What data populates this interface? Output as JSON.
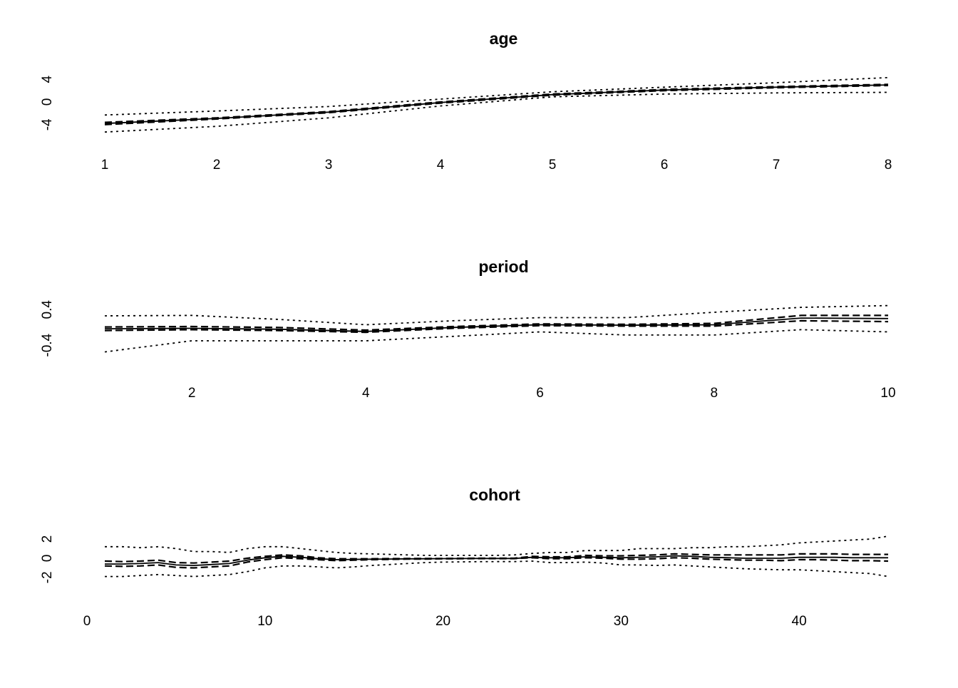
{
  "chart_data": [
    {
      "type": "line",
      "title": "age",
      "xlabel": "",
      "ylabel": "",
      "x": [
        1,
        2,
        3,
        4,
        5,
        6,
        7,
        8
      ],
      "xlim": [
        1,
        8
      ],
      "ylim": [
        -4.4,
        4.4
      ],
      "xticks": [
        1,
        2,
        3,
        4,
        5,
        6,
        7,
        8
      ],
      "yticks": [
        -4,
        0,
        4
      ],
      "grid": false,
      "legend": "none",
      "series": [
        {
          "line": "solid",
          "values": [
            -3.8,
            -2.9,
            -1.8,
            -0.1,
            1.3,
            2.1,
            2.6,
            3.0
          ]
        },
        {
          "line": "dashed",
          "values": [
            -3.6,
            -2.8,
            -1.7,
            0.0,
            1.4,
            2.2,
            2.7,
            3.1
          ]
        },
        {
          "line": "dashed",
          "values": [
            -4.0,
            -3.0,
            -1.9,
            -0.2,
            1.2,
            2.0,
            2.5,
            2.9
          ]
        },
        {
          "line": "dotted",
          "values": [
            -2.3,
            -1.6,
            -0.8,
            0.5,
            1.8,
            2.6,
            3.4,
            4.3
          ]
        },
        {
          "line": "dotted",
          "values": [
            -5.3,
            -4.3,
            -2.8,
            -0.7,
            0.9,
            1.4,
            1.6,
            1.7
          ]
        }
      ]
    },
    {
      "type": "line",
      "title": "period",
      "xlabel": "",
      "ylabel": "",
      "x": [
        1,
        2,
        3,
        4,
        5,
        6,
        7,
        8,
        9,
        10
      ],
      "xlim": [
        1,
        10
      ],
      "ylim": [
        -0.62,
        0.5
      ],
      "xticks": [
        2,
        4,
        6,
        8,
        10
      ],
      "yticks": [
        -0.4,
        0.4
      ],
      "grid": false,
      "legend": "none",
      "series": [
        {
          "line": "solid",
          "values": [
            -0.03,
            -0.02,
            -0.04,
            -0.09,
            0.0,
            0.06,
            0.05,
            0.06,
            0.21,
            0.2
          ]
        },
        {
          "line": "dashed",
          "values": [
            0.01,
            0.02,
            0.0,
            -0.06,
            0.02,
            0.08,
            0.07,
            0.09,
            0.27,
            0.27
          ]
        },
        {
          "line": "dashed",
          "values": [
            -0.07,
            -0.05,
            -0.07,
            -0.11,
            -0.02,
            0.04,
            0.03,
            0.03,
            0.15,
            0.13
          ]
        },
        {
          "line": "dotted",
          "values": [
            0.26,
            0.27,
            0.18,
            0.06,
            0.15,
            0.22,
            0.22,
            0.34,
            0.45,
            0.49
          ]
        },
        {
          "line": "dotted",
          "values": [
            -0.55,
            -0.3,
            -0.3,
            -0.3,
            -0.2,
            -0.1,
            -0.17,
            -0.17,
            -0.05,
            -0.1
          ]
        }
      ]
    },
    {
      "type": "line",
      "title": "cohort",
      "xlabel": "",
      "ylabel": "",
      "x": [
        1,
        2,
        3,
        4,
        5,
        6,
        7,
        8,
        9,
        10,
        11,
        12,
        13,
        14,
        15,
        16,
        17,
        18,
        19,
        20,
        21,
        22,
        23,
        24,
        25,
        26,
        27,
        28,
        29,
        30,
        31,
        32,
        33,
        34,
        35,
        36,
        37,
        38,
        39,
        40,
        41,
        42,
        43,
        44,
        45
      ],
      "xlim": [
        0,
        45
      ],
      "ylim": [
        -2.6,
        2.6
      ],
      "xticks": [
        0,
        10,
        20,
        30,
        40
      ],
      "yticks": [
        -2,
        0,
        2
      ],
      "grid": false,
      "legend": "none",
      "series": [
        {
          "line": "solid",
          "values": [
            -0.6,
            -0.6,
            -0.55,
            -0.45,
            -0.7,
            -0.75,
            -0.65,
            -0.55,
            -0.2,
            0.05,
            0.2,
            0.1,
            -0.05,
            -0.15,
            -0.12,
            -0.1,
            -0.08,
            -0.06,
            -0.05,
            -0.04,
            -0.03,
            -0.02,
            -0.02,
            -0.02,
            0.1,
            0.05,
            0.05,
            0.15,
            0.1,
            0.05,
            0.1,
            0.15,
            0.25,
            0.2,
            0.1,
            0.05,
            0.0,
            0.0,
            0.0,
            0.1,
            0.1,
            0.1,
            0.05,
            0.05,
            0.05
          ]
        },
        {
          "line": "dashed",
          "values": [
            -0.3,
            -0.35,
            -0.3,
            -0.2,
            -0.45,
            -0.5,
            -0.4,
            -0.3,
            0.0,
            0.2,
            0.35,
            0.25,
            0.05,
            -0.05,
            -0.05,
            -0.05,
            -0.04,
            -0.03,
            -0.02,
            -0.02,
            -0.01,
            0.0,
            0.0,
            0.0,
            0.2,
            0.15,
            0.15,
            0.3,
            0.25,
            0.25,
            0.3,
            0.35,
            0.45,
            0.4,
            0.35,
            0.35,
            0.35,
            0.35,
            0.35,
            0.45,
            0.45,
            0.45,
            0.4,
            0.4,
            0.4
          ]
        },
        {
          "line": "dashed",
          "values": [
            -0.8,
            -0.85,
            -0.8,
            -0.7,
            -0.95,
            -1.0,
            -0.9,
            -0.8,
            -0.4,
            -0.15,
            0.05,
            -0.05,
            -0.15,
            -0.25,
            -0.2,
            -0.15,
            -0.12,
            -0.09,
            -0.08,
            -0.06,
            -0.05,
            -0.04,
            -0.04,
            -0.04,
            0.05,
            -0.05,
            -0.05,
            0.05,
            0.0,
            -0.1,
            -0.1,
            -0.05,
            0.05,
            0.0,
            -0.1,
            -0.15,
            -0.2,
            -0.2,
            -0.25,
            -0.15,
            -0.15,
            -0.2,
            -0.25,
            -0.25,
            -0.3
          ]
        },
        {
          "line": "dotted",
          "values": [
            1.2,
            1.2,
            1.1,
            1.2,
            1.0,
            0.7,
            0.7,
            0.6,
            1.0,
            1.2,
            1.2,
            1.0,
            0.8,
            0.6,
            0.5,
            0.45,
            0.4,
            0.35,
            0.3,
            0.3,
            0.3,
            0.3,
            0.3,
            0.35,
            0.5,
            0.6,
            0.6,
            0.8,
            0.8,
            0.8,
            1.0,
            1.0,
            1.0,
            1.1,
            1.1,
            1.2,
            1.2,
            1.3,
            1.4,
            1.6,
            1.7,
            1.8,
            1.9,
            2.0,
            2.3
          ]
        },
        {
          "line": "dotted",
          "values": [
            -1.9,
            -1.9,
            -1.8,
            -1.7,
            -1.8,
            -1.9,
            -1.8,
            -1.7,
            -1.4,
            -1.0,
            -0.8,
            -0.8,
            -0.9,
            -1.0,
            -0.9,
            -0.75,
            -0.65,
            -0.55,
            -0.45,
            -0.4,
            -0.38,
            -0.36,
            -0.35,
            -0.35,
            -0.3,
            -0.45,
            -0.45,
            -0.4,
            -0.5,
            -0.7,
            -0.7,
            -0.75,
            -0.7,
            -0.8,
            -0.9,
            -1.0,
            -1.1,
            -1.15,
            -1.2,
            -1.2,
            -1.3,
            -1.4,
            -1.5,
            -1.6,
            -1.9
          ]
        }
      ]
    }
  ]
}
